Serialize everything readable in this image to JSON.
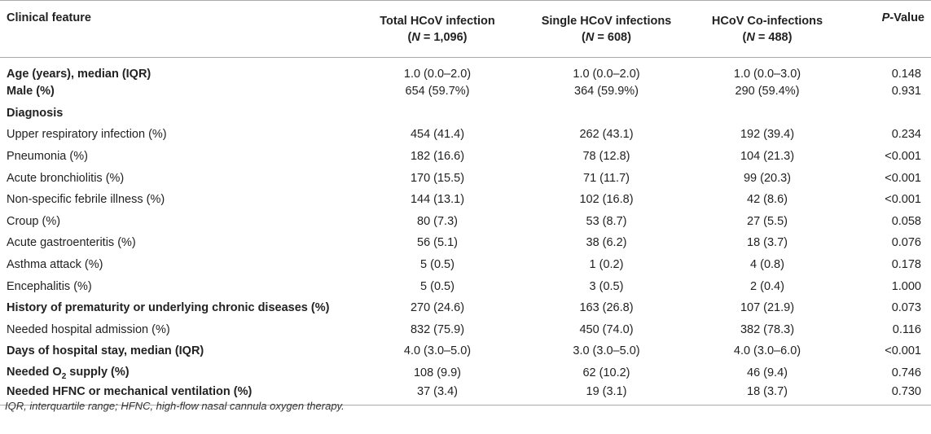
{
  "table": {
    "headers": {
      "feature": "Clinical feature",
      "total_line1": "Total HCoV infection",
      "total_n_label": "N",
      "total_n_value": " = 1,096",
      "single_line1": "Single HCoV infections",
      "single_n_label": "N",
      "single_n_value": " = 608",
      "coinf_line1": "HCoV Co-infections",
      "coinf_n_label": "N",
      "coinf_n_value": " = 488",
      "p_italic": "P",
      "p_rest": "-Value"
    },
    "rows": [
      {
        "label": "Age (years), median (IQR)",
        "bold": true,
        "total": "1.0 (0.0–2.0)",
        "single": "1.0 (0.0–2.0)",
        "coinf": "1.0 (0.0–3.0)",
        "p": "0.148"
      },
      {
        "label": "Male (%)",
        "bold": true,
        "total": "654 (59.7%)",
        "single": "364 (59.9%)",
        "coinf": "290 (59.4%)",
        "p": "0.931"
      },
      {
        "label": "Diagnosis",
        "bold": true,
        "total": "",
        "single": "",
        "coinf": "",
        "p": ""
      },
      {
        "label": "Upper respiratory infection (%)",
        "bold": false,
        "total": "454 (41.4)",
        "single": "262 (43.1)",
        "coinf": "192 (39.4)",
        "p": "0.234"
      },
      {
        "label": "Pneumonia (%)",
        "bold": false,
        "total": "182 (16.6)",
        "single": "78 (12.8)",
        "coinf": "104 (21.3)",
        "p": "<0.001"
      },
      {
        "label": "Acute bronchiolitis (%)",
        "bold": false,
        "total": "170 (15.5)",
        "single": "71 (11.7)",
        "coinf": "99 (20.3)",
        "p": "<0.001"
      },
      {
        "label": "Non-specific febrile illness (%)",
        "bold": false,
        "total": "144 (13.1)",
        "single": "102 (16.8)",
        "coinf": "42 (8.6)",
        "p": "<0.001"
      },
      {
        "label": "Croup (%)",
        "bold": false,
        "total": "80 (7.3)",
        "single": "53 (8.7)",
        "coinf": "27 (5.5)",
        "p": "0.058"
      },
      {
        "label": "Acute gastroenteritis (%)",
        "bold": false,
        "total": "56 (5.1)",
        "single": "38 (6.2)",
        "coinf": "18 (3.7)",
        "p": "0.076"
      },
      {
        "label": "Asthma attack (%)",
        "bold": false,
        "total": "5 (0.5)",
        "single": "1 (0.2)",
        "coinf": "4 (0.8)",
        "p": "0.178"
      },
      {
        "label": "Encephalitis (%)",
        "bold": false,
        "total": "5 (0.5)",
        "single": "3 (0.5)",
        "coinf": "2 (0.4)",
        "p": "1.000"
      },
      {
        "label": "History of prematurity or underlying chronic diseases (%)",
        "bold": true,
        "total": "270 (24.6)",
        "single": "163 (26.8)",
        "coinf": "107 (21.9)",
        "p": "0.073"
      },
      {
        "label": "Needed hospital admission (%)",
        "bold": false,
        "total": "832 (75.9)",
        "single": "450 (74.0)",
        "coinf": "382 (78.3)",
        "p": "0.116"
      },
      {
        "label": "Days of hospital stay, median (IQR)",
        "bold": true,
        "total": "4.0 (3.0–5.0)",
        "single": "3.0 (3.0–5.0)",
        "coinf": "4.0 (3.0–6.0)",
        "p": "<0.001"
      },
      {
        "label": "Needed O",
        "label_sub": "2",
        "label_tail": " supply (%)",
        "bold": true,
        "total": "108 (9.9)",
        "single": "62 (10.2)",
        "coinf": "46 (9.4)",
        "p": "0.746"
      },
      {
        "label": "Needed HFNC or mechanical ventilation (%)",
        "bold": true,
        "total": "37 (3.4)",
        "single": "19 (3.1)",
        "coinf": "18 (3.7)",
        "p": "0.730"
      }
    ]
  },
  "footnote": "IQR, interquartile range; HFNC, high-flow nasal cannula oxygen therapy."
}
